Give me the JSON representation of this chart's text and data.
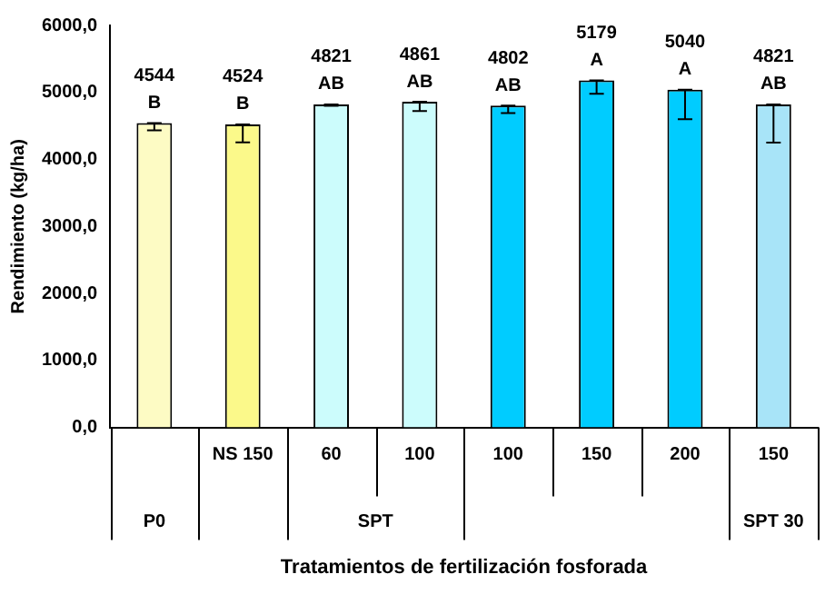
{
  "chart_data": {
    "type": "bar",
    "ylabel": "Rendimiento (kg/ha)",
    "xlabel": "Tratamientos de fertilización fosforada",
    "categories": [
      null,
      "NS 150",
      "60",
      "100",
      "100",
      "150",
      "200",
      "150"
    ],
    "values": [
      4544,
      4524,
      4821,
      4861,
      4802,
      5179,
      5040,
      4821
    ],
    "errors": [
      [
        4434,
        4544
      ],
      [
        4254,
        4524
      ],
      [
        4801,
        4821
      ],
      [
        4721,
        4861
      ],
      [
        4692,
        4802
      ],
      [
        4979,
        5179
      ],
      [
        4600,
        5040
      ],
      [
        4251,
        4821
      ]
    ],
    "value_labels": [
      "4544\nB",
      "4524\nB",
      "4821\nAB",
      "4861\nAB",
      "4802\nAB",
      "5179\nA",
      "5040\nA",
      "4821\nAB"
    ],
    "colors": [
      "#fdfbc4",
      "#fbf98a",
      "#ccfcfc",
      "#ccfcfc",
      "#00ccff",
      "#00ccff",
      "#00ccff",
      "#a8e4f8"
    ],
    "annotations": [
      "P0",
      "SPT",
      "SPT 30"
    ],
    "ylim": [
      0,
      6000
    ],
    "yticks": [
      {
        "value": 0,
        "label": "0,0"
      },
      {
        "value": 1000,
        "label": "1000,0"
      },
      {
        "value": 2000,
        "label": "2000,0"
      },
      {
        "value": 3000,
        "label": "3000,0"
      },
      {
        "value": 4000,
        "label": "4000,0"
      },
      {
        "value": 5000,
        "label": "5000,0"
      },
      {
        "value": 6000,
        "label": "6000,0"
      }
    ],
    "grid": false,
    "legend": false
  }
}
